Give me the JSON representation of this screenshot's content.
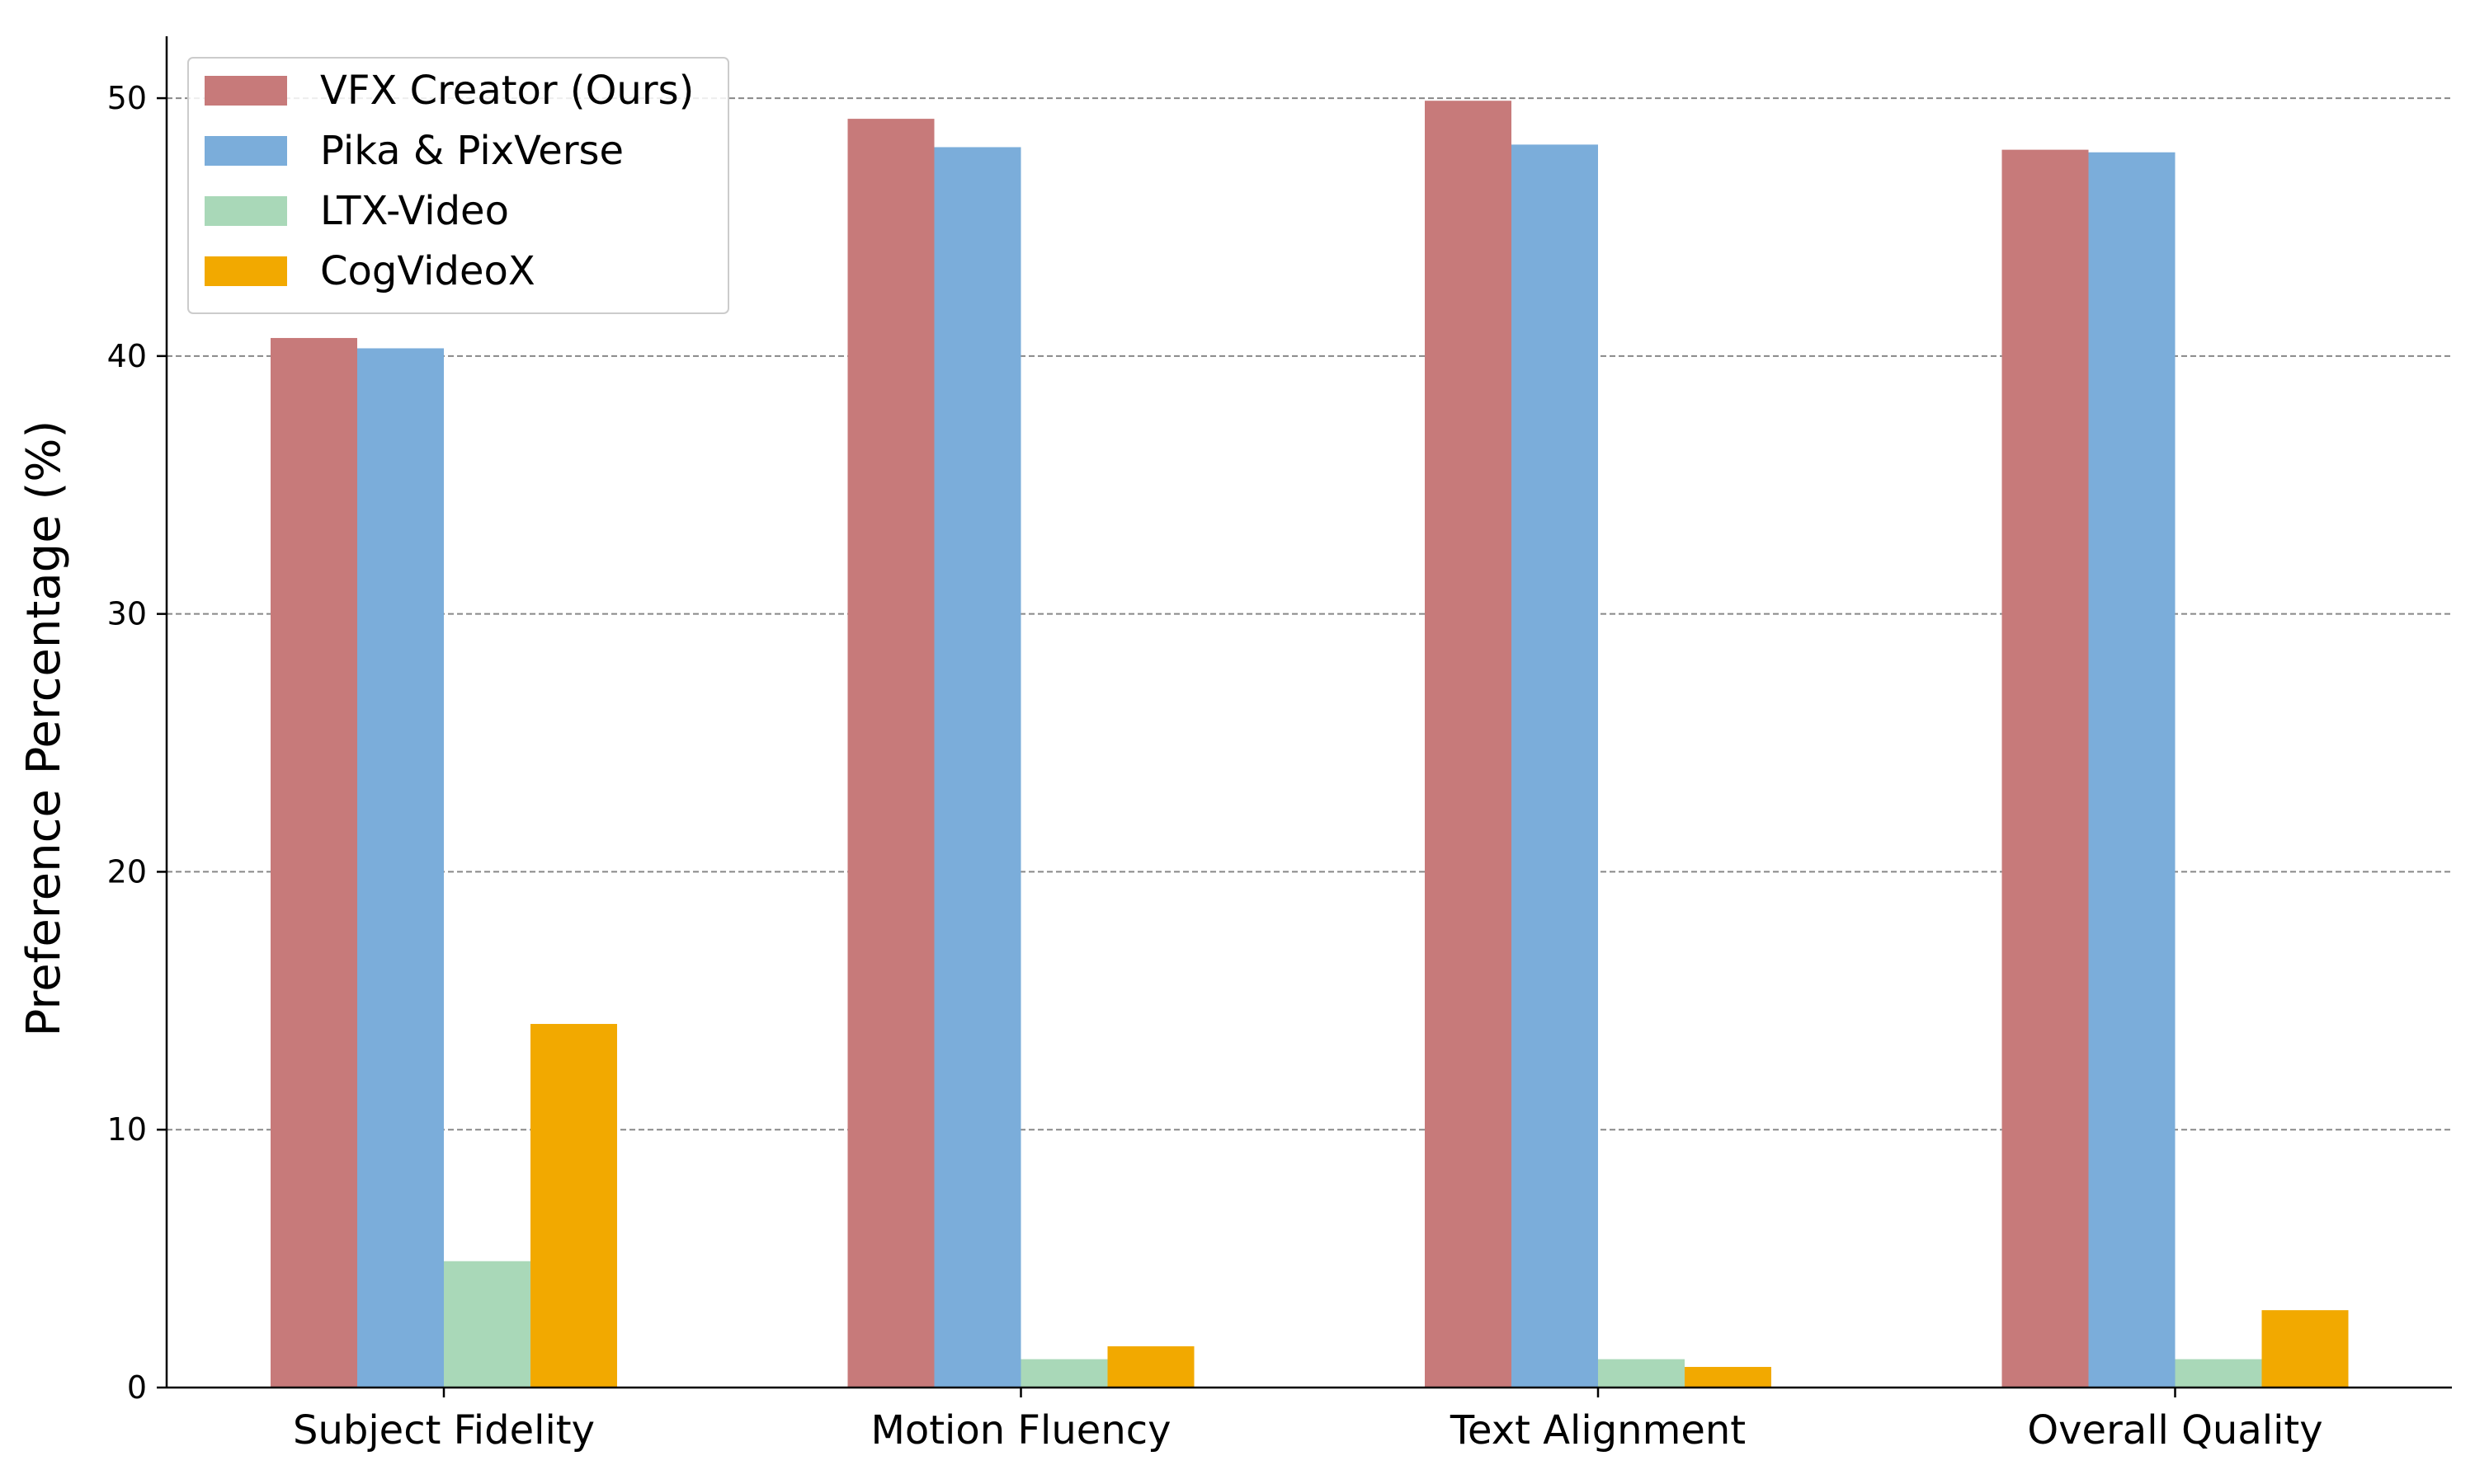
{
  "chart_data": {
    "type": "bar",
    "title": "",
    "xlabel": "",
    "ylabel": "Preference Percentage (%)",
    "categories": [
      "Subject Fidelity",
      "Motion Fluency",
      "Text Alignment",
      "Overall Quality"
    ],
    "series": [
      {
        "name": "VFX Creator (Ours)",
        "color": "#c77a7a",
        "values": [
          40.7,
          49.2,
          49.9,
          48.0
        ]
      },
      {
        "name": "Pika & PixVerse",
        "color": "#7badda",
        "values": [
          40.3,
          48.1,
          48.2,
          47.9
        ]
      },
      {
        "name": "LTX-Video",
        "color": "#a9d8b8",
        "values": [
          4.9,
          1.1,
          1.1,
          1.1
        ]
      },
      {
        "name": "CogVideoX",
        "color": "#f2a900",
        "values": [
          14.1,
          1.6,
          0.8,
          3.0
        ]
      }
    ],
    "ylim": [
      0,
      52.4
    ],
    "yticks": [
      0,
      10,
      20,
      30,
      40,
      50
    ],
    "grid": "horizontal-dashed",
    "legend_position": "top-left"
  }
}
